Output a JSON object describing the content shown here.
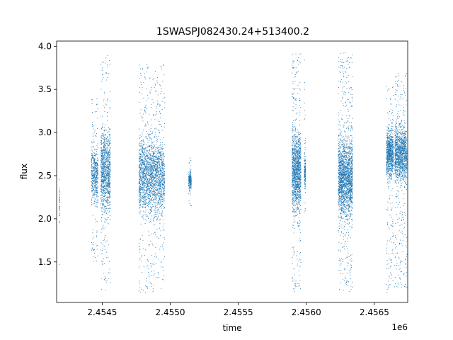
{
  "chart_data": {
    "type": "scatter",
    "title": "1SWASPJ082430.24+513400.2",
    "xlabel": "time",
    "ylabel": "flux",
    "x_offset_label": "1e6",
    "xlim": [
      2454165,
      2456745
    ],
    "ylim": [
      1.03,
      4.06
    ],
    "x_ticks": [
      2454500,
      2455000,
      2455500,
      2456000,
      2456500
    ],
    "x_tick_labels": [
      "2.4545",
      "2.4550",
      "2.4555",
      "2.4560",
      "2.4565"
    ],
    "y_ticks": [
      1.5,
      2.0,
      2.5,
      3.0,
      3.5,
      4.0
    ],
    "y_tick_labels": [
      "1.5",
      "2.0",
      "2.5",
      "3.0",
      "3.5",
      "4.0"
    ],
    "grid": false,
    "legend": "none",
    "marker_color": "#1f77b4",
    "series": [
      {
        "clusters": [
          {
            "x": [
              2454185,
              2454188
            ],
            "y": [
              1.33,
              2.92
            ],
            "center": 2.15,
            "count": 40
          },
          {
            "x": [
              2454420,
              2454470
            ],
            "y": [
              1.5,
              3.4
            ],
            "center": 2.5,
            "count": 500
          },
          {
            "x": [
              2454490,
              2454560
            ],
            "y": [
              1.15,
              3.9
            ],
            "center": 2.55,
            "count": 1100
          },
          {
            "x": [
              2454770,
              2454960
            ],
            "y": [
              1.15,
              3.8
            ],
            "center": 2.5,
            "count": 2200
          },
          {
            "x": [
              2455135,
              2455155
            ],
            "y": [
              2.15,
              2.73
            ],
            "center": 2.45,
            "count": 200
          },
          {
            "x": [
              2455895,
              2455960
            ],
            "y": [
              1.15,
              3.92
            ],
            "center": 2.55,
            "count": 1300
          },
          {
            "x": [
              2455985,
              2455995
            ],
            "y": [
              2.0,
              3.9
            ],
            "center": 2.55,
            "count": 150
          },
          {
            "x": [
              2456235,
              2456340
            ],
            "y": [
              1.15,
              3.93
            ],
            "center": 2.48,
            "count": 2000
          },
          {
            "x": [
              2456590,
              2456640
            ],
            "y": [
              1.15,
              3.55
            ],
            "center": 2.75,
            "count": 900
          },
          {
            "x": [
              2456650,
              2456740
            ],
            "y": [
              1.2,
              3.7
            ],
            "center": 2.75,
            "count": 1300
          }
        ]
      }
    ]
  }
}
